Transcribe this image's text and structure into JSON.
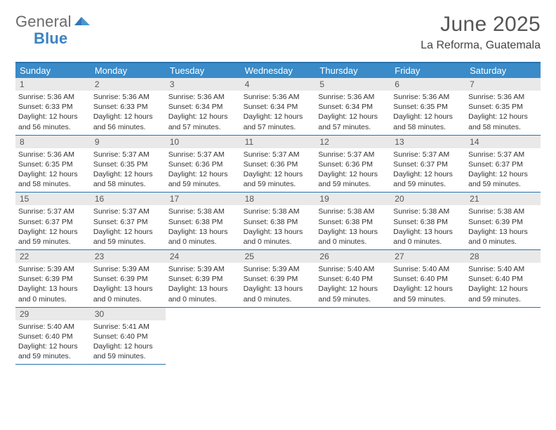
{
  "logo": {
    "general": "General",
    "blue": "Blue"
  },
  "title": "June 2025",
  "location": "La Reforma, Guatemala",
  "colors": {
    "header_bg": "#3a8bc8",
    "header_text": "#ffffff",
    "border": "#2773ad",
    "daynum_bg": "#e9e9e9",
    "body_bg": "#ffffff",
    "logo_general": "#6a6a6a",
    "logo_blue": "#3b82c4",
    "title_color": "#555555"
  },
  "typography": {
    "month_title_fontsize": 30,
    "location_fontsize": 16,
    "dow_fontsize": 13,
    "daynum_fontsize": 12,
    "info_fontsize": 10.5
  },
  "dow": [
    "Sunday",
    "Monday",
    "Tuesday",
    "Wednesday",
    "Thursday",
    "Friday",
    "Saturday"
  ],
  "weeks": [
    [
      {
        "n": "1",
        "sr": "5:36 AM",
        "ss": "6:33 PM",
        "dl": "12 hours and 56 minutes."
      },
      {
        "n": "2",
        "sr": "5:36 AM",
        "ss": "6:33 PM",
        "dl": "12 hours and 56 minutes."
      },
      {
        "n": "3",
        "sr": "5:36 AM",
        "ss": "6:34 PM",
        "dl": "12 hours and 57 minutes."
      },
      {
        "n": "4",
        "sr": "5:36 AM",
        "ss": "6:34 PM",
        "dl": "12 hours and 57 minutes."
      },
      {
        "n": "5",
        "sr": "5:36 AM",
        "ss": "6:34 PM",
        "dl": "12 hours and 57 minutes."
      },
      {
        "n": "6",
        "sr": "5:36 AM",
        "ss": "6:35 PM",
        "dl": "12 hours and 58 minutes."
      },
      {
        "n": "7",
        "sr": "5:36 AM",
        "ss": "6:35 PM",
        "dl": "12 hours and 58 minutes."
      }
    ],
    [
      {
        "n": "8",
        "sr": "5:36 AM",
        "ss": "6:35 PM",
        "dl": "12 hours and 58 minutes."
      },
      {
        "n": "9",
        "sr": "5:37 AM",
        "ss": "6:35 PM",
        "dl": "12 hours and 58 minutes."
      },
      {
        "n": "10",
        "sr": "5:37 AM",
        "ss": "6:36 PM",
        "dl": "12 hours and 59 minutes."
      },
      {
        "n": "11",
        "sr": "5:37 AM",
        "ss": "6:36 PM",
        "dl": "12 hours and 59 minutes."
      },
      {
        "n": "12",
        "sr": "5:37 AM",
        "ss": "6:36 PM",
        "dl": "12 hours and 59 minutes."
      },
      {
        "n": "13",
        "sr": "5:37 AM",
        "ss": "6:37 PM",
        "dl": "12 hours and 59 minutes."
      },
      {
        "n": "14",
        "sr": "5:37 AM",
        "ss": "6:37 PM",
        "dl": "12 hours and 59 minutes."
      }
    ],
    [
      {
        "n": "15",
        "sr": "5:37 AM",
        "ss": "6:37 PM",
        "dl": "12 hours and 59 minutes."
      },
      {
        "n": "16",
        "sr": "5:37 AM",
        "ss": "6:37 PM",
        "dl": "12 hours and 59 minutes."
      },
      {
        "n": "17",
        "sr": "5:38 AM",
        "ss": "6:38 PM",
        "dl": "13 hours and 0 minutes."
      },
      {
        "n": "18",
        "sr": "5:38 AM",
        "ss": "6:38 PM",
        "dl": "13 hours and 0 minutes."
      },
      {
        "n": "19",
        "sr": "5:38 AM",
        "ss": "6:38 PM",
        "dl": "13 hours and 0 minutes."
      },
      {
        "n": "20",
        "sr": "5:38 AM",
        "ss": "6:38 PM",
        "dl": "13 hours and 0 minutes."
      },
      {
        "n": "21",
        "sr": "5:38 AM",
        "ss": "6:39 PM",
        "dl": "13 hours and 0 minutes."
      }
    ],
    [
      {
        "n": "22",
        "sr": "5:39 AM",
        "ss": "6:39 PM",
        "dl": "13 hours and 0 minutes."
      },
      {
        "n": "23",
        "sr": "5:39 AM",
        "ss": "6:39 PM",
        "dl": "13 hours and 0 minutes."
      },
      {
        "n": "24",
        "sr": "5:39 AM",
        "ss": "6:39 PM",
        "dl": "13 hours and 0 minutes."
      },
      {
        "n": "25",
        "sr": "5:39 AM",
        "ss": "6:39 PM",
        "dl": "13 hours and 0 minutes."
      },
      {
        "n": "26",
        "sr": "5:40 AM",
        "ss": "6:40 PM",
        "dl": "12 hours and 59 minutes."
      },
      {
        "n": "27",
        "sr": "5:40 AM",
        "ss": "6:40 PM",
        "dl": "12 hours and 59 minutes."
      },
      {
        "n": "28",
        "sr": "5:40 AM",
        "ss": "6:40 PM",
        "dl": "12 hours and 59 minutes."
      }
    ],
    [
      {
        "n": "29",
        "sr": "5:40 AM",
        "ss": "6:40 PM",
        "dl": "12 hours and 59 minutes."
      },
      {
        "n": "30",
        "sr": "5:41 AM",
        "ss": "6:40 PM",
        "dl": "12 hours and 59 minutes."
      },
      null,
      null,
      null,
      null,
      null
    ]
  ],
  "labels": {
    "sunrise": "Sunrise:",
    "sunset": "Sunset:",
    "daylight": "Daylight:"
  }
}
